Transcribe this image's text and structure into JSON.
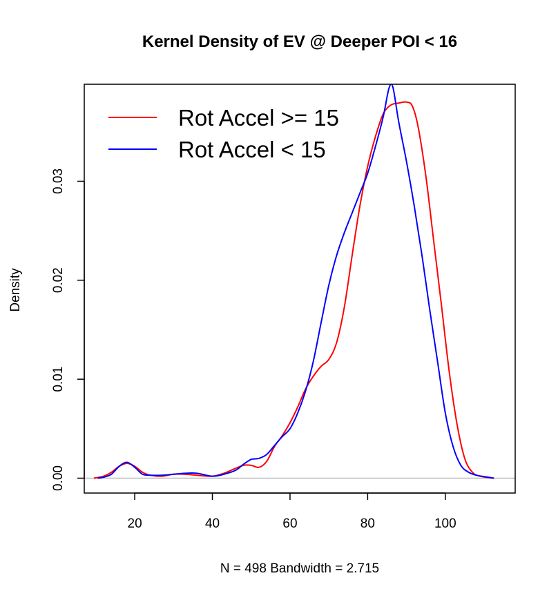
{
  "chart_data": {
    "type": "line",
    "title": "Kernel Density of EV @ Deeper POI < 16",
    "xlabel": "N = 498   Bandwidth = 2.715",
    "ylabel": "Density",
    "xlim": [
      7,
      118
    ],
    "ylim": [
      -0.0015,
      0.0398
    ],
    "x_ticks": [
      20,
      40,
      60,
      80,
      100
    ],
    "x_tick_labels": [
      "20",
      "40",
      "60",
      "80",
      "100"
    ],
    "y_ticks": [
      0.0,
      0.01,
      0.02,
      0.03
    ],
    "y_tick_labels": [
      "0.00",
      "0.01",
      "0.02",
      "0.03"
    ],
    "grid": false,
    "baseline": 0,
    "baseline_color": "#bebebe",
    "legend_position": "top-left",
    "series": [
      {
        "name": "Rot Accel >= 15",
        "color": "#ff0000",
        "x": [
          9.5,
          12,
          14,
          16,
          18,
          20,
          22,
          24,
          27,
          30,
          33,
          36,
          40,
          43,
          46,
          48,
          50,
          52,
          54,
          56,
          58,
          60,
          62,
          64,
          66,
          68,
          70,
          72,
          74,
          76,
          78,
          80,
          82,
          84,
          86,
          88,
          90,
          91.5,
          93,
          95,
          97,
          99,
          101,
          103,
          105,
          107,
          109,
          112.5
        ],
        "y": [
          0.0,
          0.0002,
          0.0006,
          0.0012,
          0.0015,
          0.0012,
          0.0006,
          0.0003,
          0.0002,
          0.0004,
          0.0004,
          0.0003,
          0.0002,
          0.0005,
          0.001,
          0.0013,
          0.0013,
          0.0011,
          0.0017,
          0.0032,
          0.0043,
          0.0056,
          0.0072,
          0.009,
          0.0103,
          0.0113,
          0.012,
          0.0137,
          0.0173,
          0.0225,
          0.0275,
          0.0315,
          0.0345,
          0.0368,
          0.0377,
          0.0379,
          0.038,
          0.0376,
          0.0355,
          0.0305,
          0.024,
          0.0175,
          0.0108,
          0.0055,
          0.002,
          0.0006,
          0.0002,
          0.0
        ]
      },
      {
        "name": "Rot Accel < 15",
        "color": "#0000ff",
        "x": [
          10.5,
          12,
          14,
          16,
          18,
          20,
          22,
          24,
          27,
          30,
          33,
          36,
          40,
          43,
          46,
          48,
          50,
          52,
          54,
          56,
          58,
          60,
          62,
          64,
          66,
          68,
          70,
          72,
          74,
          76,
          78,
          80,
          82,
          84,
          85.5,
          86.5,
          88,
          90,
          92,
          94,
          96,
          98,
          100,
          102,
          104,
          106,
          108,
          111,
          112.5
        ],
        "y": [
          0.0,
          0.0001,
          0.0004,
          0.0012,
          0.0016,
          0.0011,
          0.0004,
          0.0003,
          0.0003,
          0.0004,
          0.0005,
          0.0005,
          0.0002,
          0.0004,
          0.0008,
          0.0014,
          0.0019,
          0.002,
          0.0024,
          0.0033,
          0.0042,
          0.005,
          0.0066,
          0.0088,
          0.0118,
          0.0157,
          0.0195,
          0.0225,
          0.0248,
          0.0268,
          0.0288,
          0.0308,
          0.0335,
          0.0365,
          0.0394,
          0.0395,
          0.036,
          0.032,
          0.0275,
          0.0225,
          0.017,
          0.0118,
          0.0066,
          0.0032,
          0.0013,
          0.0006,
          0.0003,
          0.0001,
          0.0
        ]
      }
    ]
  }
}
